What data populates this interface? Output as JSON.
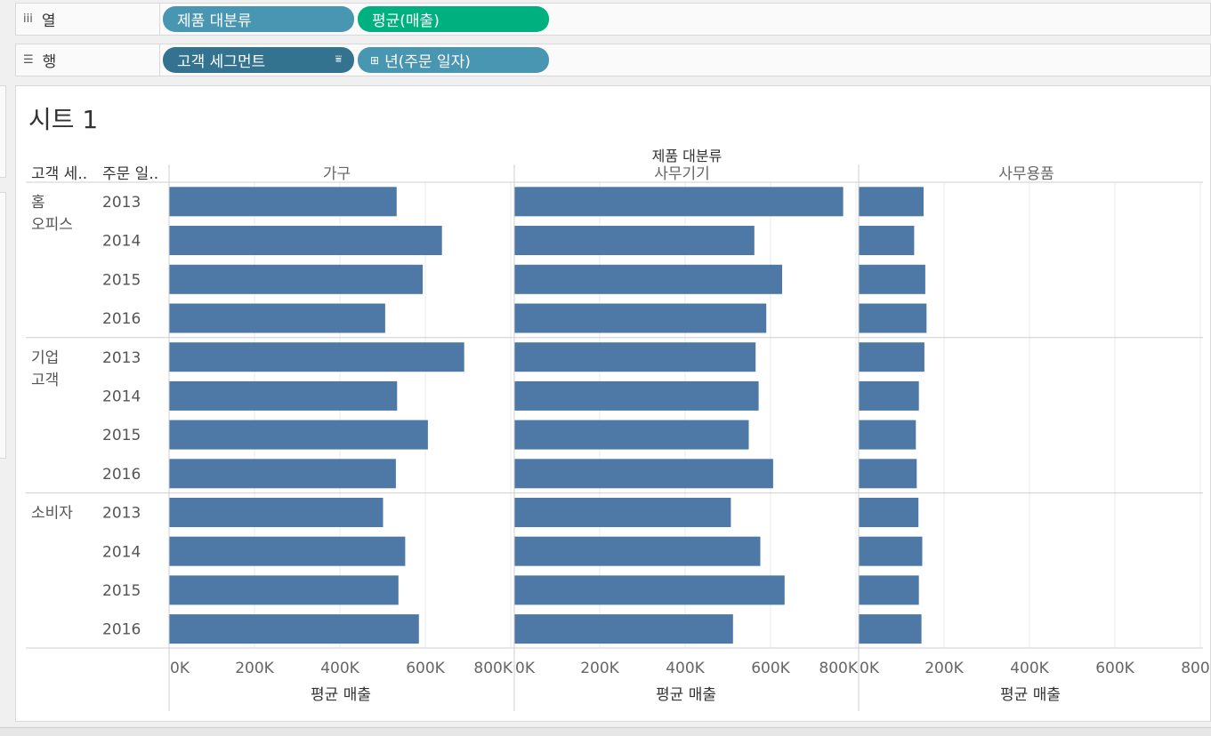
{
  "shelves": {
    "columns": {
      "label": "열",
      "icon": "column-shelf-icon",
      "pills": [
        {
          "text": "제품 대분류",
          "color": "#4996b2"
        },
        {
          "text": "평균(매출)",
          "color": "#00b180"
        }
      ]
    },
    "rows": {
      "label": "행",
      "icon": "row-shelf-icon",
      "pills": [
        {
          "text": "고객 세그먼트",
          "color": "#34738f"
        },
        {
          "text": "년(주문 일자)",
          "color": "#4996b2"
        }
      ]
    }
  },
  "sheet": {
    "title": "시트 1"
  },
  "chart_data": {
    "type": "bar",
    "orientation": "horizontal",
    "column_header": "제품 대분류",
    "row_headers": [
      "고객 세..",
      "주문 일.."
    ],
    "panels": [
      "가구",
      "사무기기",
      "사무용품"
    ],
    "segments": [
      "홈\n오피스",
      "기업\n고객",
      "소비자"
    ],
    "years": [
      "2013",
      "2014",
      "2015",
      "2016"
    ],
    "values": {
      "가구": [
        [
          533000,
          639000,
          594000,
          506000
        ],
        [
          691000,
          534000,
          606000,
          531000
        ],
        [
          501000,
          553000,
          537000,
          585000
        ]
      ],
      "사무기기": [
        [
          770000,
          562000,
          627000,
          590000
        ],
        [
          565000,
          572000,
          549000,
          606000
        ],
        [
          507000,
          576000,
          633000,
          512000
        ]
      ],
      "사무용품": [
        [
          152000,
          130000,
          156000,
          159000
        ],
        [
          154000,
          141000,
          134000,
          136000
        ],
        [
          140000,
          149000,
          141000,
          147000
        ]
      ]
    },
    "xlim": [
      0,
      800000
    ],
    "x_ticks": [
      "0K",
      "200K",
      "400K",
      "600K",
      "800K"
    ],
    "xlabel": "평균 매출",
    "bar_color": "#4e79a7",
    "grid": true
  }
}
